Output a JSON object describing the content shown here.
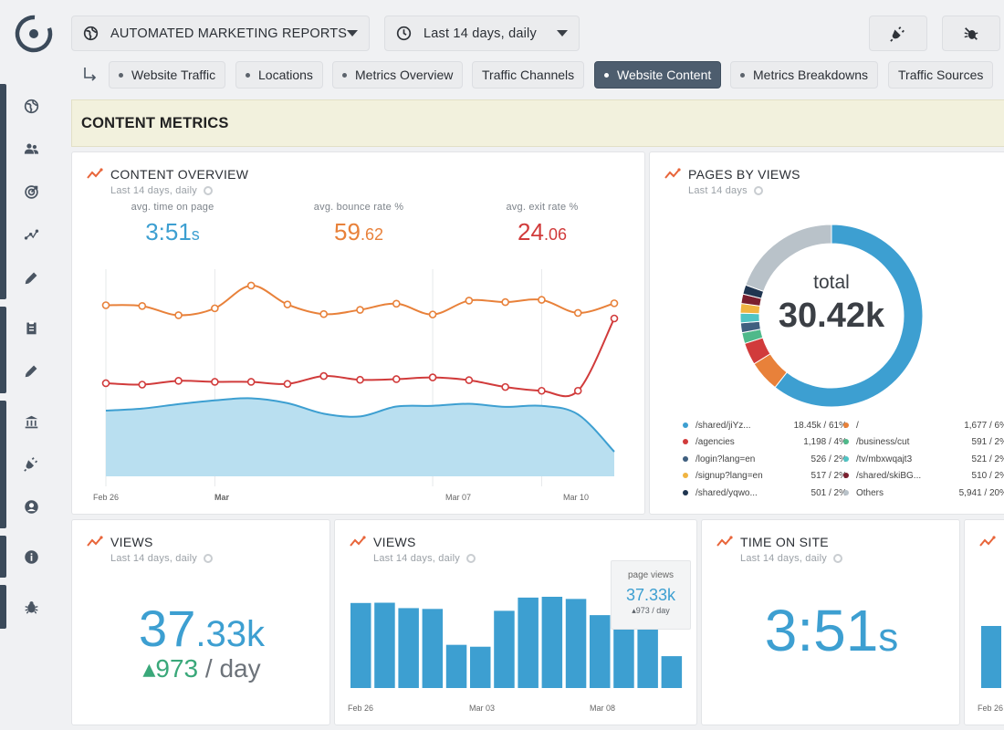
{
  "header": {
    "report_select": "AUTOMATED MARKETING REPORTS",
    "range_select": "Last 14 days, daily"
  },
  "nav_icons": [
    "globe-icon",
    "users-icon",
    "target-icon",
    "path-icon",
    "pen-icon",
    "clipboard-icon",
    "pen-icon",
    "bank-icon",
    "plugin-icon",
    "user-circle-icon",
    "info-icon",
    "bug-icon"
  ],
  "tabs": [
    {
      "label": "Website Traffic",
      "dot": true,
      "active": false
    },
    {
      "label": "Locations",
      "dot": true,
      "active": false
    },
    {
      "label": "Metrics Overview",
      "dot": true,
      "active": false
    },
    {
      "label": "Traffic Channels",
      "dot": false,
      "active": false
    },
    {
      "label": "Website Content",
      "dot": true,
      "active": true
    },
    {
      "label": "Metrics Breakdowns",
      "dot": true,
      "active": false
    },
    {
      "label": "Traffic Sources",
      "dot": false,
      "active": false
    }
  ],
  "section_title": "CONTENT METRICS",
  "colors": {
    "blue": "#3d9fd1",
    "orange": "#e8813a",
    "red": "#d13b3b",
    "grey": "#b9c2c9"
  },
  "content_overview": {
    "title": "CONTENT OVERVIEW",
    "subtitle": "Last 14 days, daily",
    "stats": [
      {
        "label": "avg. time on page",
        "main": "3:51",
        "suffix": "s",
        "color": "#3d9fd1"
      },
      {
        "label": "avg. bounce rate %",
        "main": "59",
        "suffix": ".62",
        "color": "#e8813a"
      },
      {
        "label": "avg. exit rate %",
        "main": "24",
        "suffix": ".06",
        "color": "#d13b3b"
      }
    ],
    "x_labels": [
      {
        "text": "Feb 26",
        "bold": false
      },
      {
        "text": "Mar",
        "bold": true
      },
      {
        "text": "Mar 07",
        "bold": false
      },
      {
        "text": "Mar 10",
        "bold": false
      }
    ]
  },
  "pages_by_views": {
    "title": "PAGES BY VIEWS",
    "subtitle": "Last 14 days",
    "total_label": "total",
    "total_value": "30.42k",
    "legend": [
      {
        "name": "/shared/jiYz...",
        "value": "18.45k  /  61%",
        "color": "#3d9fd1"
      },
      {
        "name": "/agencies",
        "value": "1,198  /   4%",
        "color": "#d13b3b"
      },
      {
        "name": "/login?lang=en",
        "value": "526  /   2%",
        "color": "#3f5f7f"
      },
      {
        "name": "/signup?lang=en",
        "value": "517  /   2%",
        "color": "#f0b441"
      },
      {
        "name": "/shared/yqwo...",
        "value": "501  /   2%",
        "color": "#1f3550"
      },
      {
        "name": "/",
        "value": "1,677  /   6%",
        "color": "#e8813a"
      },
      {
        "name": "/business/cut",
        "value": "591  /   2%",
        "color": "#4fb98a"
      },
      {
        "name": "/tv/mbxwqajt3",
        "value": "521  /   2%",
        "color": "#4fc4c4"
      },
      {
        "name": "/shared/skiBG...",
        "value": "510  /   2%",
        "color": "#7a1f2e"
      },
      {
        "name": "Others",
        "value": "5,941  /  20%",
        "color": "#b9c2c9"
      }
    ]
  },
  "chart_data": [
    {
      "type": "line",
      "title": "CONTENT OVERVIEW",
      "x": [
        "Feb 26",
        "Feb 27",
        "Feb 28",
        "Feb 29",
        "Mar 01",
        "Mar 02",
        "Mar 03",
        "Mar 04",
        "Mar 05",
        "Mar 06",
        "Mar 07",
        "Mar 08",
        "Mar 09",
        "Mar 10",
        "Mar 11"
      ],
      "series": [
        {
          "name": "avg. bounce rate %",
          "values": [
            61.2,
            61.0,
            58.6,
            60.4,
            66.3,
            61.4,
            58.9,
            60.0,
            61.6,
            58.8,
            62.4,
            62.0,
            62.6,
            59.2,
            61.7
          ]
        },
        {
          "name": "avg. exit rate %",
          "values": [
            21.4,
            21.0,
            22.1,
            21.8,
            21.8,
            21.2,
            23.5,
            22.4,
            22.6,
            23.1,
            22.3,
            20.3,
            19.2,
            19.2,
            40.3
          ]
        },
        {
          "name": "avg. time on page",
          "values": [
            3.72,
            3.78,
            3.91,
            4.02,
            4.08,
            3.94,
            3.63,
            3.55,
            3.84,
            3.86,
            3.92,
            3.83,
            3.86,
            3.61,
            2.52
          ]
        }
      ]
    },
    {
      "type": "pie",
      "title": "PAGES BY VIEWS",
      "categories": [
        "/shared/jiYz...",
        "/",
        "/agencies",
        "/business/cut",
        "/login?lang=en",
        "/tv/mbxwqajt3",
        "/signup?lang=en",
        "/shared/skiBG...",
        "/shared/yqwo...",
        "Others"
      ],
      "values": [
        18450,
        1677,
        1198,
        591,
        526,
        521,
        517,
        510,
        501,
        5941
      ]
    },
    {
      "type": "bar",
      "title": "VIEWS",
      "categories": [
        "Feb 26",
        "Feb 27",
        "Feb 28",
        "Feb 29",
        "Mar 01",
        "Mar 02",
        "Mar 03",
        "Mar 04",
        "Mar 05",
        "Mar 06",
        "Mar 07",
        "Mar 08",
        "Mar 09",
        "Mar 10"
      ],
      "values": [
        3150,
        3160,
        2960,
        2930,
        1600,
        1530,
        2860,
        3350,
        3380,
        3300,
        2700,
        2540,
        2740,
        1180
      ]
    }
  ],
  "views_card": {
    "title": "VIEWS",
    "subtitle": "Last 14 days, daily",
    "main": "37",
    "decimal": ".33k",
    "delta": "▴973",
    "per": " / day"
  },
  "views_chart_card": {
    "title": "VIEWS",
    "subtitle": "Last 14 days, daily",
    "tooltip_label": "page views",
    "tooltip_value": "37.33k",
    "tooltip_delta": "▴973 / day",
    "x_labels": [
      "Feb 26",
      "Mar 03",
      "Mar 08"
    ]
  },
  "time_on_site_card": {
    "title": "TIME ON SITE",
    "subtitle": "Last 14 days, daily",
    "main": "3:51",
    "suffix": "s"
  },
  "partial_card": {
    "x_label": "Feb 26"
  }
}
